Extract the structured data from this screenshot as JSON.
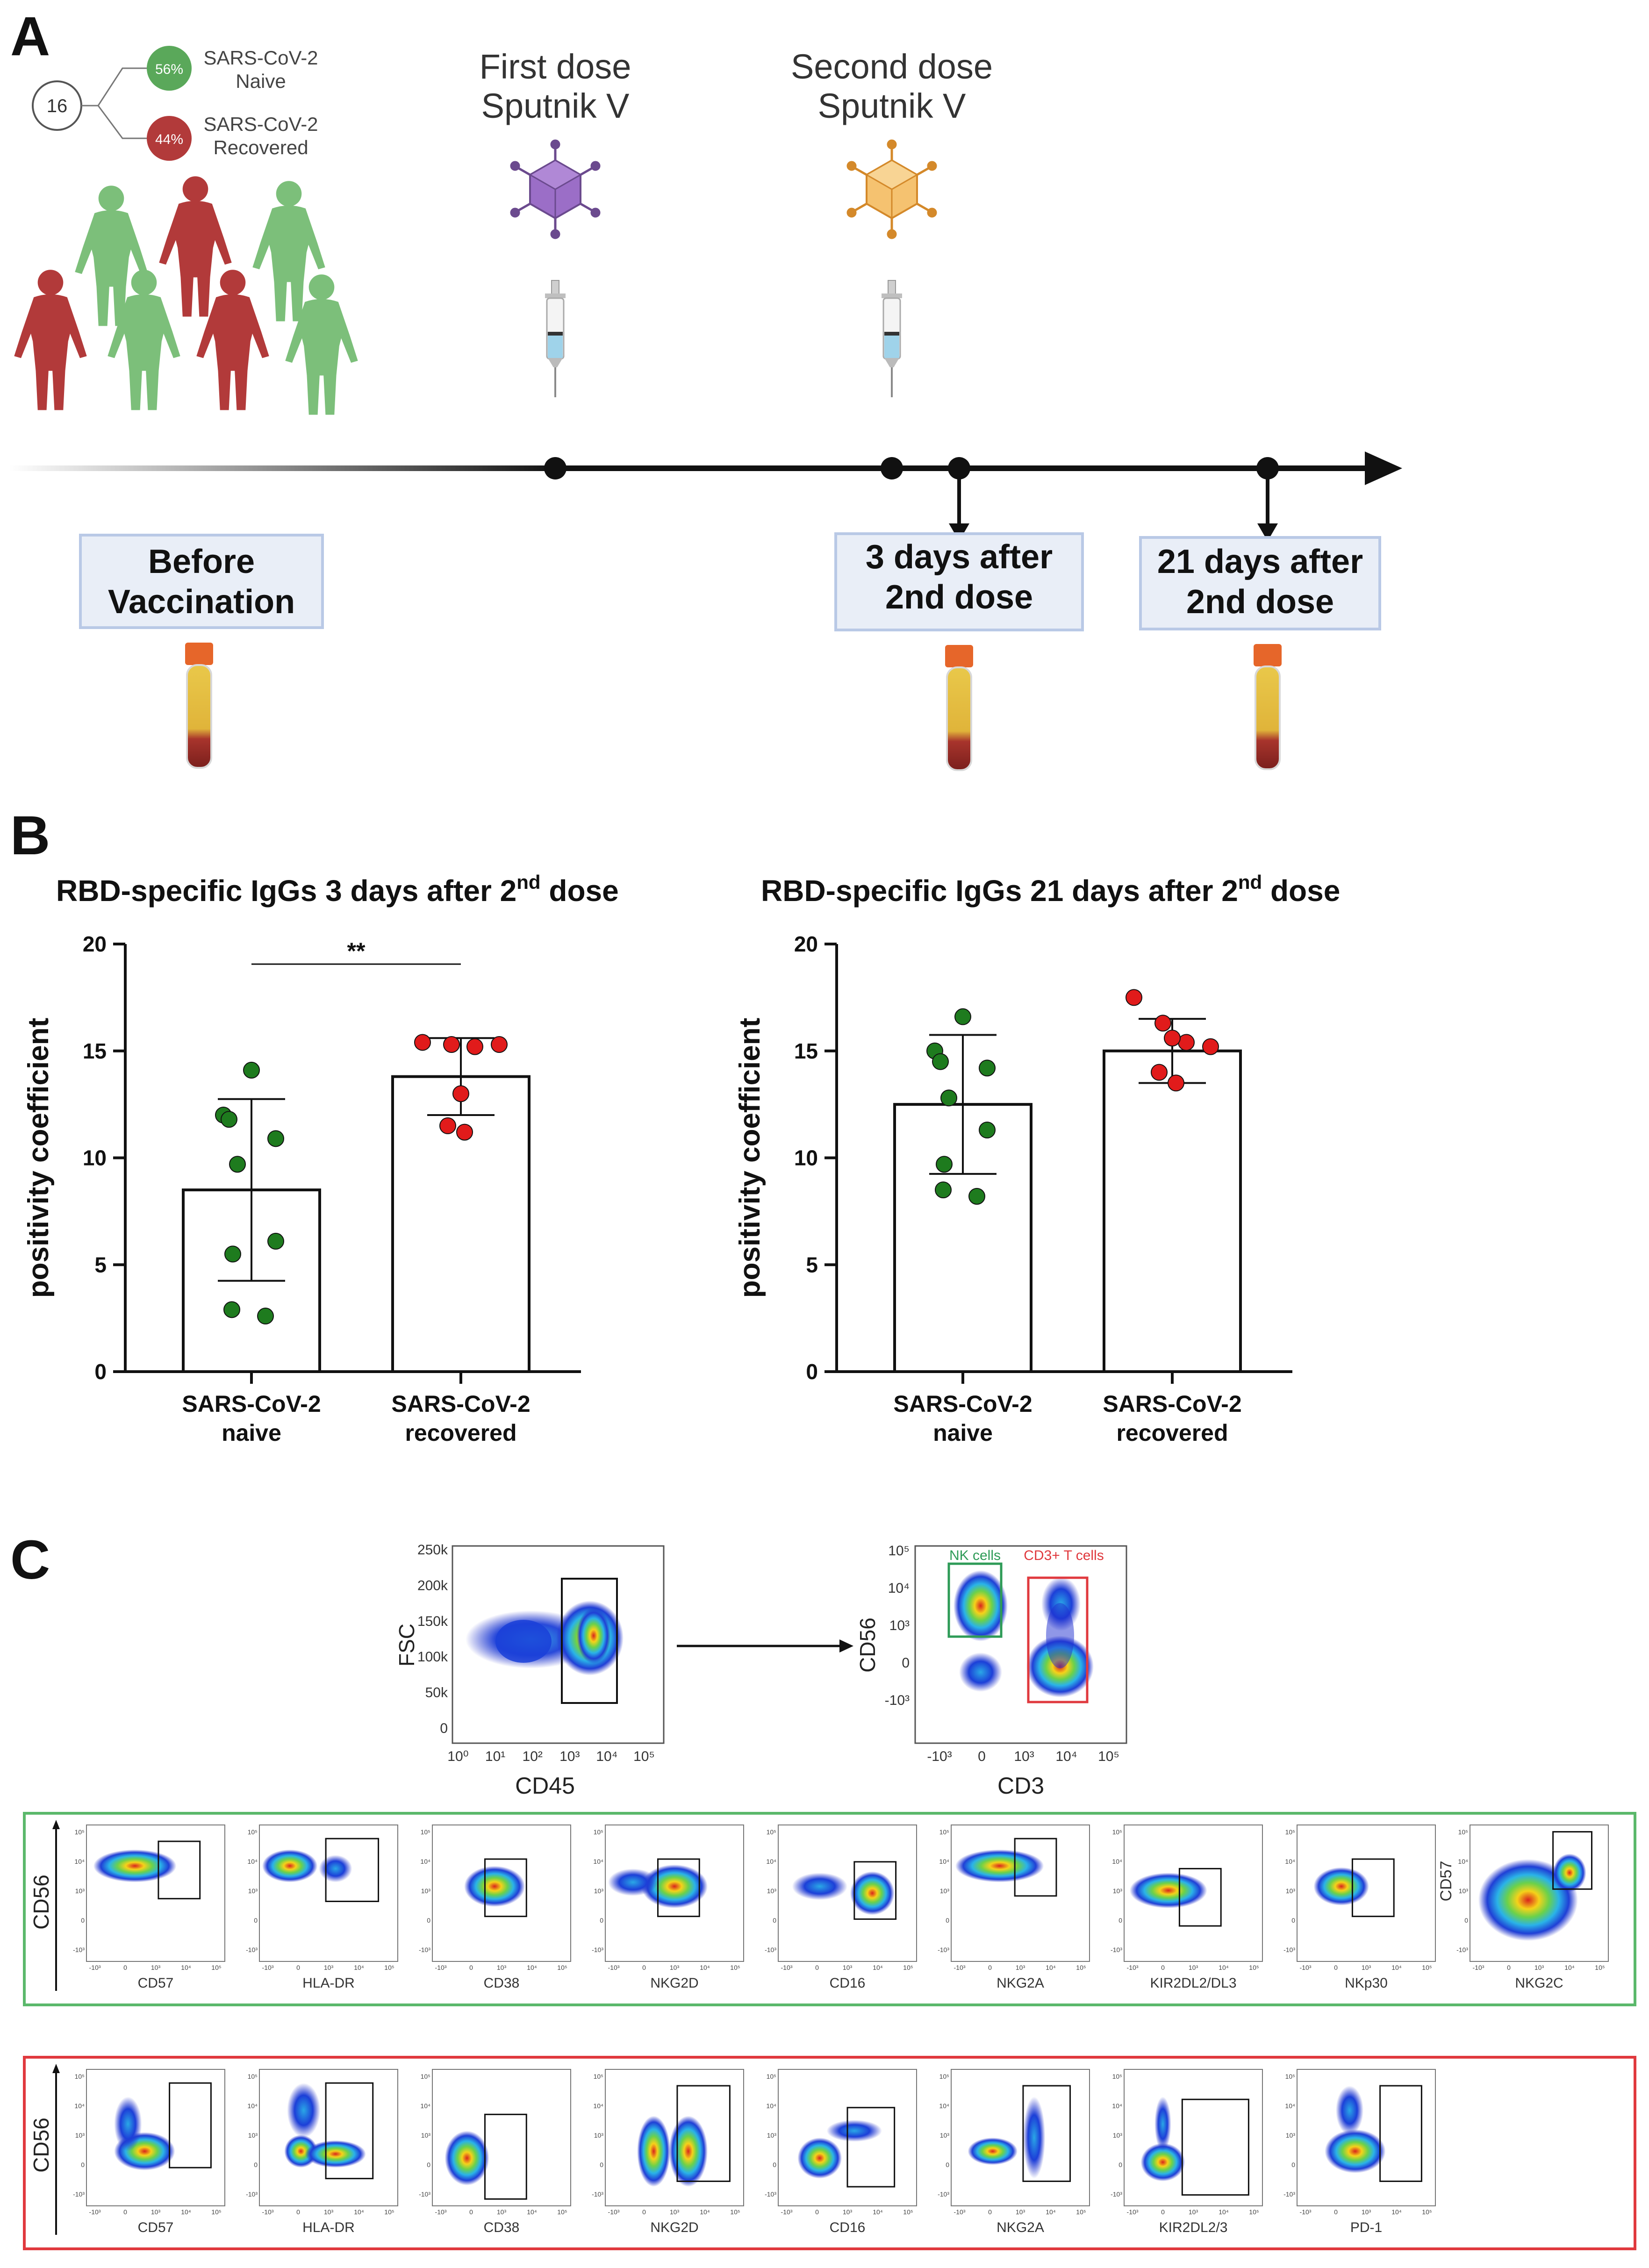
{
  "panel_a": {
    "letter": "A",
    "cohort_total": "16",
    "naive_pct": "56%",
    "recovered_pct": "44%",
    "naive_label_1": "SARS-CoV-2",
    "naive_label_2": "Naive",
    "recovered_label_1": "SARS-CoV-2",
    "recovered_label_2": "Recovered",
    "first_dose_1": "First dose",
    "first_dose_2": "Sputnik V",
    "second_dose_1": "Second dose",
    "second_dose_2": "Sputnik V",
    "before_1": "Before",
    "before_2": "Vaccination",
    "day3_1": "3 days after",
    "day3_2": "2nd dose",
    "day21_1": "21 days after",
    "day21_2": "2nd dose",
    "colors": {
      "naive": "#5aa85a",
      "recovered": "#b23a3a",
      "first_virus": "#8e5bb5",
      "second_virus": "#f2b65a",
      "box_fill": "#e9eef7",
      "box_border": "#b9c9e6"
    }
  },
  "panel_b": {
    "letter": "B",
    "colors": {
      "naive_dot": "#1e7b1e",
      "recovered_dot": "#e11b1b"
    }
  },
  "chart_data": [
    {
      "type": "bar",
      "title": "RBD-specific IgGs 3 days after 2",
      "title_sup": "nd",
      "title_end": " dose",
      "ylabel": "positivity coefficient",
      "ylim": [
        0,
        20
      ],
      "yticks": [
        "0",
        "5",
        "10",
        "15",
        "20"
      ],
      "categories": [
        [
          "SARS-CoV-2",
          "naive"
        ],
        [
          "SARS-CoV-2",
          "recovered"
        ]
      ],
      "means": [
        8.5,
        13.8
      ],
      "sd": [
        4.25,
        1.8
      ],
      "points": [
        [
          14.1,
          12.0,
          11.8,
          10.9,
          9.7,
          6.1,
          5.5,
          2.9,
          2.6
        ],
        [
          15.4,
          15.3,
          15.2,
          15.3,
          13.0,
          11.5,
          11.2
        ]
      ],
      "significance": "**"
    },
    {
      "type": "bar",
      "title": "RBD-specific IgGs 21 days after 2",
      "title_sup": "nd",
      "title_end": " dose",
      "ylabel": "positivity coefficient",
      "ylim": [
        0,
        20
      ],
      "yticks": [
        "0",
        "5",
        "10",
        "15",
        "20"
      ],
      "categories": [
        [
          "SARS-CoV-2",
          "naive"
        ],
        [
          "SARS-CoV-2",
          "recovered"
        ]
      ],
      "means": [
        12.5,
        15.0
      ],
      "sd": [
        3.25,
        1.5
      ],
      "points": [
        [
          16.6,
          15.0,
          14.5,
          14.2,
          12.8,
          11.3,
          9.7,
          8.5,
          8.2
        ],
        [
          17.5,
          16.3,
          15.4,
          15.2,
          15.6,
          14.0,
          13.5
        ]
      ],
      "significance": ""
    }
  ],
  "panel_c": {
    "letter": "C",
    "gate1": {
      "ylabel": "FSC",
      "xlabel": "CD45",
      "yticks": [
        "250k",
        "200k",
        "150k",
        "100k",
        "50k",
        "0"
      ],
      "xticks": [
        "10⁰",
        "10¹",
        "10²",
        "10³",
        "10⁴",
        "10⁵"
      ]
    },
    "gate2": {
      "ylabel": "CD56",
      "xlabel": "CD3",
      "nk_label": "NK cells",
      "t_label": "CD3+ T cells",
      "yticks": [
        "10⁵",
        "10⁴",
        "10³",
        "0",
        "-10³"
      ],
      "xticks": [
        "-10³",
        "0",
        "10³",
        "10⁴",
        "10⁵"
      ]
    },
    "nk_row": {
      "ylabel": "CD56",
      "last_ylabel": "CD57",
      "markers": [
        "CD57",
        "HLA-DR",
        "CD38",
        "NKG2D",
        "CD16",
        "NKG2A",
        "KIR2DL2/DL3",
        "NKp30",
        "NKG2C"
      ],
      "border": "#5bb86b"
    },
    "t_row": {
      "ylabel": "CD56",
      "markers": [
        "CD57",
        "HLA-DR",
        "CD38",
        "NKG2D",
        "CD16",
        "NKG2A",
        "KIR2DL2/3",
        "PD-1"
      ],
      "border": "#e0393e"
    },
    "mini_ticks": [
      "-10³",
      "0",
      "10³",
      "10⁴",
      "10⁵"
    ]
  }
}
